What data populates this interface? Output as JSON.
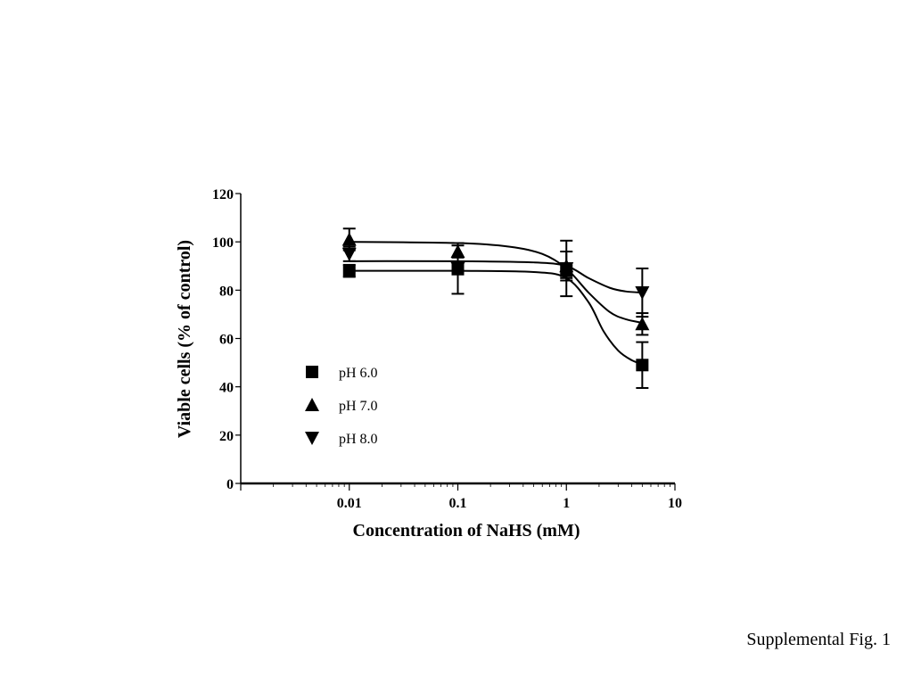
{
  "caption": "Supplemental Fig. 1",
  "chart_data": {
    "type": "scatter",
    "title": "",
    "xlabel": "Concentration of NaHS (mM)",
    "ylabel": "Viable cells (% of control)",
    "x_scale": "log",
    "xlim": [
      0.001,
      10
    ],
    "ylim": [
      0,
      120
    ],
    "x_ticks": [
      0.01,
      0.1,
      1,
      10
    ],
    "x_tick_labels": [
      "0.01",
      "0.1",
      "1",
      "10"
    ],
    "y_ticks": [
      0,
      20,
      40,
      60,
      80,
      100,
      120
    ],
    "y_tick_labels": [
      "0",
      "20",
      "40",
      "60",
      "80",
      "100",
      "120"
    ],
    "grid": false,
    "legend_position": "center-left",
    "series": [
      {
        "name": "pH 6.0",
        "marker": "square",
        "x": [
          0.01,
          0.1,
          1,
          5
        ],
        "y": [
          88,
          89,
          88,
          49
        ],
        "error": [
          2.5,
          2.5,
          3,
          9.5
        ],
        "fit": [
          [
            0.001,
            88
          ],
          [
            0.01,
            88
          ],
          [
            0.1,
            88
          ],
          [
            0.5,
            87.5
          ],
          [
            1,
            85
          ],
          [
            1.6,
            75
          ],
          [
            2.2,
            63
          ],
          [
            3,
            55
          ],
          [
            4,
            51
          ],
          [
            5,
            49.5
          ]
        ]
      },
      {
        "name": "pH 7.0",
        "marker": "triangle-up",
        "x": [
          0.01,
          0.1,
          1,
          5
        ],
        "y": [
          101,
          96,
          90,
          66
        ],
        "error": [
          4.5,
          2.5,
          6,
          4.5
        ],
        "fit": [
          [
            0.001,
            100
          ],
          [
            0.01,
            100
          ],
          [
            0.1,
            99.5
          ],
          [
            0.3,
            98
          ],
          [
            0.6,
            95
          ],
          [
            1,
            89
          ],
          [
            1.6,
            79
          ],
          [
            2.5,
            71
          ],
          [
            3.5,
            68
          ],
          [
            5,
            66.5
          ]
        ]
      },
      {
        "name": "pH 8.0",
        "marker": "triangle-down",
        "x": [
          0.01,
          0.1,
          1,
          5
        ],
        "y": [
          95,
          89,
          89,
          79
        ],
        "error": [
          3,
          10.5,
          11.5,
          10
        ],
        "fit": [
          [
            0.001,
            92
          ],
          [
            0.01,
            92
          ],
          [
            0.1,
            92
          ],
          [
            0.5,
            91.5
          ],
          [
            1,
            90
          ],
          [
            1.6,
            85
          ],
          [
            2.5,
            81
          ],
          [
            3.5,
            79.5
          ],
          [
            5,
            79
          ]
        ]
      }
    ]
  }
}
